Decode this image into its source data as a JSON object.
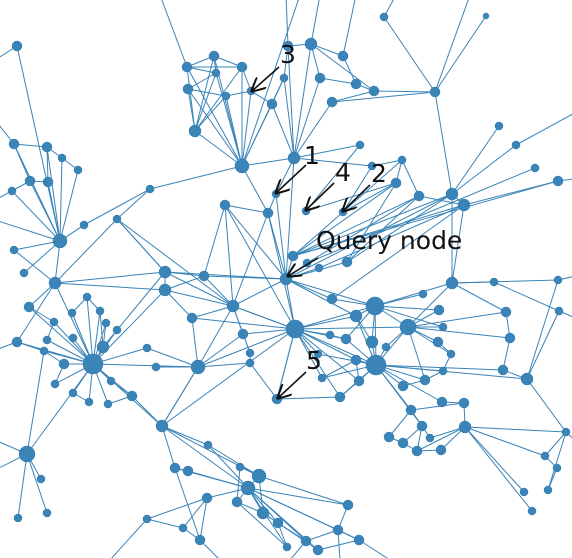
{
  "diagram": {
    "type": "network-graph",
    "node_color": "#3a84b8",
    "edge_color": "#3a84b8",
    "annotation_color": "#111111",
    "annotations": [
      {
        "id": "query",
        "label": "Query node"
      },
      {
        "id": "n1",
        "label": "1"
      },
      {
        "id": "n2",
        "label": "2"
      },
      {
        "id": "n3",
        "label": "3"
      },
      {
        "id": "n4",
        "label": "4"
      },
      {
        "id": "n5",
        "label": "5"
      }
    ]
  }
}
